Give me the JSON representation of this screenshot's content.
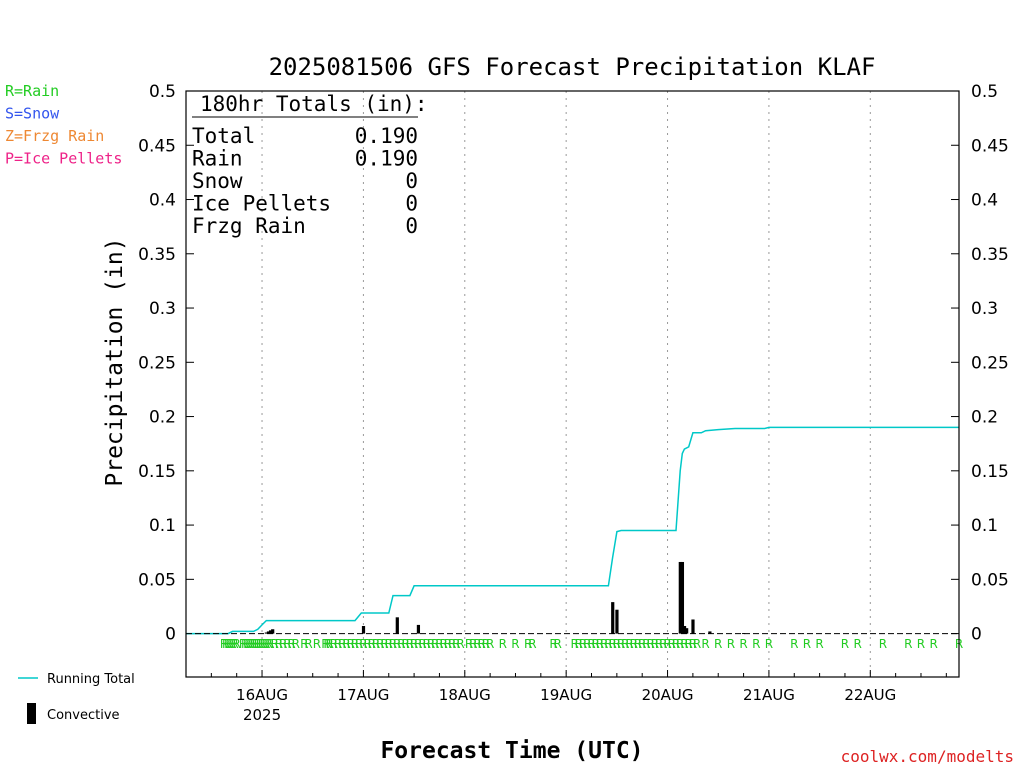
{
  "chart_data": {
    "type": "bar",
    "title": "2025081506 GFS Forecast Precipitation KLAF",
    "ylabel": "Precipitation (in)",
    "xlabel": "Forecast Time (UTC)",
    "ylim": [
      -0.04,
      0.5
    ],
    "yticks": [
      0,
      0.05,
      0.1,
      0.15,
      0.2,
      0.25,
      0.3,
      0.35,
      0.4,
      0.45,
      0.5
    ],
    "ytick_labels": [
      "0",
      "0.05",
      "0.1",
      "0.15",
      "0.2",
      "0.25",
      "0.3",
      "0.35",
      "0.4",
      "0.45",
      "0.5"
    ],
    "xlim_hours": [
      0,
      183
    ],
    "day_ticks": [
      {
        "hour": 18,
        "label": "16AUG",
        "sub": "2025"
      },
      {
        "hour": 42,
        "label": "17AUG"
      },
      {
        "hour": 66,
        "label": "18AUG"
      },
      {
        "hour": 90,
        "label": "19AUG"
      },
      {
        "hour": 114,
        "label": "20AUG"
      },
      {
        "hour": 138,
        "label": "21AUG"
      },
      {
        "hour": 162,
        "label": "22AUG"
      }
    ],
    "gridlines": true,
    "legend_types": [
      {
        "text": "R=Rain",
        "color": "#22cc22"
      },
      {
        "text": "S=Snow",
        "color": "#3355ee"
      },
      {
        "text": "Z=Frzg Rain",
        "color": "#ee8833"
      },
      {
        "text": "P=Ice Pellets",
        "color": "#ee2288"
      }
    ],
    "series": [
      {
        "name": "Running Total",
        "type": "line",
        "color": "#00c8c8",
        "points": [
          [
            0,
            0
          ],
          [
            10,
            0
          ],
          [
            11,
            0.002
          ],
          [
            16,
            0.002
          ],
          [
            17,
            0.004
          ],
          [
            18,
            0.008
          ],
          [
            19,
            0.012
          ],
          [
            40,
            0.012
          ],
          [
            41.5,
            0.019
          ],
          [
            48,
            0.019
          ],
          [
            49,
            0.035
          ],
          [
            53,
            0.035
          ],
          [
            54,
            0.044
          ],
          [
            100,
            0.044
          ],
          [
            101,
            0.07
          ],
          [
            102,
            0.094
          ],
          [
            103,
            0.095
          ],
          [
            116,
            0.095
          ],
          [
            117,
            0.15
          ],
          [
            117.5,
            0.166
          ],
          [
            118,
            0.17
          ],
          [
            119,
            0.172
          ],
          [
            120,
            0.185
          ],
          [
            122,
            0.185
          ],
          [
            123,
            0.187
          ],
          [
            126,
            0.188
          ],
          [
            130,
            0.189
          ],
          [
            137,
            0.189
          ],
          [
            138,
            0.19
          ],
          [
            183,
            0.19
          ]
        ]
      },
      {
        "name": "Convective",
        "type": "bar",
        "color": "#000000",
        "points": [
          [
            19.0,
            0.001
          ],
          [
            19.5,
            0.002
          ],
          [
            20.0,
            0.003
          ],
          [
            20.5,
            0.004
          ],
          [
            42.0,
            0.007
          ],
          [
            50.0,
            0.015
          ],
          [
            55.0,
            0.008
          ],
          [
            101.0,
            0.029
          ],
          [
            102.0,
            0.022
          ],
          [
            117.0,
            0.066
          ],
          [
            117.5,
            0.066
          ],
          [
            118.0,
            0.007
          ],
          [
            118.5,
            0.005
          ],
          [
            120.0,
            0.013
          ],
          [
            124.0,
            0.002
          ],
          [
            132.0,
            0.0005
          ]
        ]
      }
    ],
    "precip_type_hours": [
      9,
      9.5,
      10,
      10.5,
      11,
      11.5,
      12,
      13.5,
      14,
      14.5,
      15,
      15.5,
      16,
      16.5,
      17,
      17.5,
      18,
      18.5,
      19,
      19.5,
      20,
      21,
      22,
      23,
      24,
      25,
      26,
      28,
      29,
      31,
      33,
      33.5,
      34,
      35,
      36,
      37,
      38,
      39,
      40,
      41,
      42,
      43,
      44,
      45,
      46,
      47,
      48,
      49,
      50,
      51,
      52,
      53,
      54,
      55,
      56,
      57,
      58,
      59,
      60,
      61,
      62,
      63,
      64,
      65,
      67,
      68,
      69,
      70,
      71,
      72,
      75,
      78,
      81,
      82,
      87,
      88,
      92,
      93,
      94,
      95,
      96,
      97,
      98,
      99,
      100,
      101,
      102,
      103,
      104,
      105,
      106,
      107,
      108,
      109,
      110,
      111,
      112,
      113,
      114,
      115,
      116,
      117,
      118,
      119,
      120,
      121,
      123,
      126,
      129,
      132,
      135,
      138,
      144,
      147,
      150,
      156,
      159,
      165,
      171,
      174,
      177,
      183
    ],
    "totals_box": {
      "heading": "180hr Totals (in):",
      "rows": [
        {
          "label": "Total",
          "value": "0.190"
        },
        {
          "label": "Rain",
          "value": "0.190"
        },
        {
          "label": "Snow",
          "value": "0"
        },
        {
          "label": "Ice Pellets",
          "value": "0"
        },
        {
          "label": "Frzg Rain",
          "value": "0"
        }
      ]
    },
    "bottom_legend": [
      {
        "text": "Running Total",
        "kind": "line",
        "color": "#00c8c8"
      },
      {
        "text": "Convective",
        "kind": "bar",
        "color": "#000000"
      }
    ],
    "precip_type_letter": "R",
    "credit": "coolwx.com/modelts",
    "credit_color": "#dd2222"
  }
}
